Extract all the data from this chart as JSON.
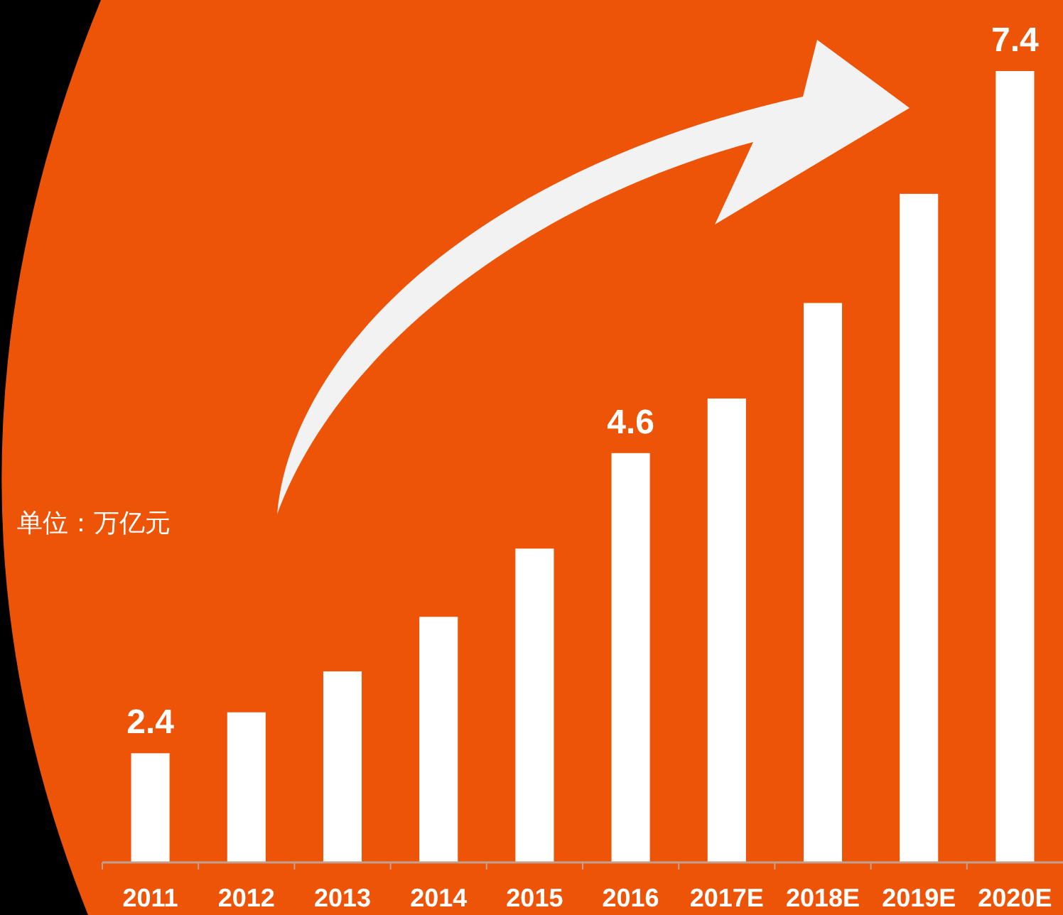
{
  "chart_data": {
    "type": "bar",
    "categories": [
      "2011",
      "2012",
      "2013",
      "2014",
      "2015",
      "2016",
      "2017E",
      "2018E",
      "2019E",
      "2020E"
    ],
    "values": [
      2.4,
      2.7,
      3.0,
      3.4,
      3.9,
      4.6,
      5.0,
      5.7,
      6.5,
      7.4
    ],
    "value_labels": [
      "2.4",
      null,
      null,
      null,
      null,
      "4.6",
      null,
      null,
      null,
      "7.4"
    ],
    "ylim": [
      1.6,
      7.4
    ],
    "tick_labels": "x",
    "color": "#ffffff",
    "annotations": [
      "单位：万亿元"
    ]
  }
}
